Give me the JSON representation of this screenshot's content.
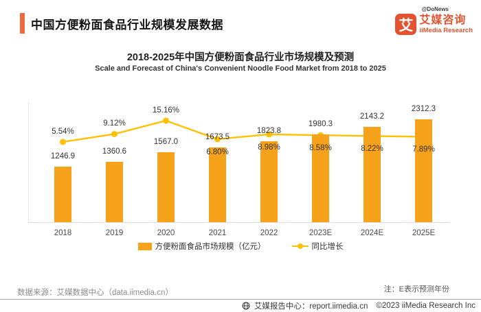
{
  "header": {
    "title": "中国方便粉面食品行业规模发展数据",
    "logo": {
      "donews": "@DoNews",
      "icon_char": "艾",
      "brand_cn": "艾媒咨询",
      "brand_en": "iiMedia Research"
    }
  },
  "chart": {
    "title": "2018-2025年中国方便粉面食品行业市场规模及预测",
    "subtitle": "Scale and Forecast of China's Convenient Noodle Food Market from 2018 to 2025"
  },
  "chart_data": {
    "type": "bar+line",
    "categories": [
      "2018",
      "2019",
      "2020",
      "2021",
      "2022",
      "2023E",
      "2024E",
      "2025E"
    ],
    "series": [
      {
        "name": "方便粉面食品市场规模（亿元）",
        "type": "bar",
        "values": [
          1246.9,
          1360.6,
          1567.0,
          1673.5,
          1823.8,
          1980.3,
          2143.2,
          2312.3
        ],
        "color": "#F7A21B"
      },
      {
        "name": "同比增长",
        "type": "line",
        "unit": "%",
        "values": [
          5.54,
          9.12,
          15.16,
          6.8,
          8.98,
          8.58,
          8.22,
          7.89
        ],
        "color": "#FFC000"
      }
    ],
    "growth_label_side": [
      "above",
      "above",
      "above",
      "below",
      "below",
      "below",
      "below",
      "below"
    ],
    "legend_position": "bottom",
    "grid": false,
    "value_labels": true
  },
  "footer": {
    "source": "数据来源：艾媒数据中心（data.iimedia.cn）",
    "note": "注：E表示预测年份",
    "report_center": "艾媒报告中心：report.iimedia.cn",
    "copyright": "©2023 iiMedia Research Inc"
  },
  "colors": {
    "bar": "#F7A21B",
    "line": "#FFC000",
    "accent": "#EC6B3E",
    "logo": "#E4532F"
  }
}
